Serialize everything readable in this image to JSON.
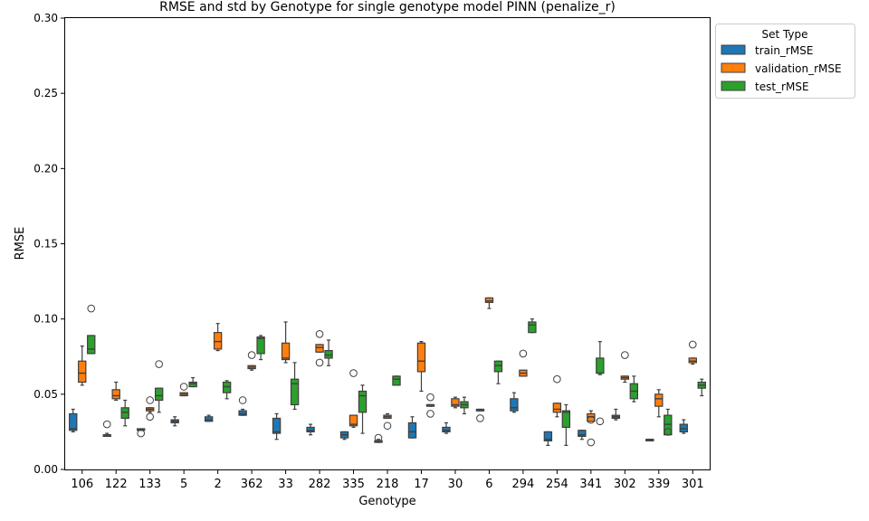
{
  "chart_data": {
    "type": "boxplot",
    "title": "RMSE and std by Genotype for single genotype model PINN (penalize_r)",
    "xlabel": "Genotype",
    "ylabel": "RMSE",
    "ylim": [
      0,
      0.3
    ],
    "yticks": [
      "0.00",
      "0.05",
      "0.10",
      "0.15",
      "0.20",
      "0.25",
      "0.30"
    ],
    "ytick_values": [
      0,
      0.05,
      0.1,
      0.15,
      0.2,
      0.25,
      0.3
    ],
    "grid": false,
    "legend": {
      "title": "Set Type",
      "placement": "top-right outside"
    },
    "categories": [
      "106",
      "122",
      "133",
      "5",
      "2",
      "362",
      "33",
      "282",
      "335",
      "218",
      "17",
      "30",
      "6",
      "294",
      "254",
      "341",
      "302",
      "339",
      "301"
    ],
    "series": [
      {
        "name": "train_rMSE",
        "color": "#1f77b4",
        "boxes": [
          {
            "whislo": 0.025,
            "q1": 0.026,
            "med": 0.027,
            "q3": 0.037,
            "whishi": 0.04,
            "fliers": []
          },
          {
            "whislo": 0.022,
            "q1": 0.022,
            "med": 0.023,
            "q3": 0.023,
            "whishi": 0.024,
            "fliers": [
              0.03
            ]
          },
          {
            "whislo": 0.026,
            "q1": 0.026,
            "med": 0.027,
            "q3": 0.027,
            "whishi": 0.027,
            "fliers": [
              0.024
            ]
          },
          {
            "whislo": 0.029,
            "q1": 0.031,
            "med": 0.032,
            "q3": 0.033,
            "whishi": 0.035,
            "fliers": []
          },
          {
            "whislo": 0.032,
            "q1": 0.032,
            "med": 0.033,
            "q3": 0.035,
            "whishi": 0.036,
            "fliers": []
          },
          {
            "whislo": 0.036,
            "q1": 0.036,
            "med": 0.037,
            "q3": 0.039,
            "whishi": 0.04,
            "fliers": [
              0.046
            ]
          },
          {
            "whislo": 0.02,
            "q1": 0.024,
            "med": 0.025,
            "q3": 0.034,
            "whishi": 0.037,
            "fliers": []
          },
          {
            "whislo": 0.023,
            "q1": 0.025,
            "med": 0.026,
            "q3": 0.028,
            "whishi": 0.03,
            "fliers": []
          },
          {
            "whislo": 0.02,
            "q1": 0.021,
            "med": 0.023,
            "q3": 0.025,
            "whishi": 0.025,
            "fliers": []
          },
          {
            "whislo": 0.018,
            "q1": 0.018,
            "med": 0.019,
            "q3": 0.019,
            "whishi": 0.02,
            "fliers": [
              0.021
            ]
          },
          {
            "whislo": 0.021,
            "q1": 0.021,
            "med": 0.025,
            "q3": 0.031,
            "whishi": 0.035,
            "fliers": []
          },
          {
            "whislo": 0.024,
            "q1": 0.025,
            "med": 0.026,
            "q3": 0.028,
            "whishi": 0.031,
            "fliers": []
          },
          {
            "whislo": 0.039,
            "q1": 0.039,
            "med": 0.039,
            "q3": 0.04,
            "whishi": 0.04,
            "fliers": [
              0.034
            ]
          },
          {
            "whislo": 0.038,
            "q1": 0.039,
            "med": 0.041,
            "q3": 0.047,
            "whishi": 0.051,
            "fliers": []
          },
          {
            "whislo": 0.016,
            "q1": 0.019,
            "med": 0.02,
            "q3": 0.025,
            "whishi": 0.025,
            "fliers": []
          },
          {
            "whislo": 0.02,
            "q1": 0.022,
            "med": 0.023,
            "q3": 0.026,
            "whishi": 0.026,
            "fliers": []
          },
          {
            "whislo": 0.033,
            "q1": 0.034,
            "med": 0.035,
            "q3": 0.036,
            "whishi": 0.04,
            "fliers": []
          },
          {
            "whislo": 0.019,
            "q1": 0.019,
            "med": 0.02,
            "q3": 0.02,
            "whishi": 0.02,
            "fliers": []
          },
          {
            "whislo": 0.024,
            "q1": 0.025,
            "med": 0.027,
            "q3": 0.03,
            "whishi": 0.033,
            "fliers": []
          }
        ]
      },
      {
        "name": "validation_rMSE",
        "color": "#ff7f0e",
        "boxes": [
          {
            "whislo": 0.056,
            "q1": 0.058,
            "med": 0.064,
            "q3": 0.072,
            "whishi": 0.082,
            "fliers": []
          },
          {
            "whislo": 0.046,
            "q1": 0.047,
            "med": 0.049,
            "q3": 0.053,
            "whishi": 0.058,
            "fliers": []
          },
          {
            "whislo": 0.038,
            "q1": 0.039,
            "med": 0.04,
            "q3": 0.041,
            "whishi": 0.041,
            "fliers": [
              0.046,
              0.035
            ]
          },
          {
            "whislo": 0.049,
            "q1": 0.049,
            "med": 0.05,
            "q3": 0.051,
            "whishi": 0.051,
            "fliers": [
              0.055
            ]
          },
          {
            "whislo": 0.079,
            "q1": 0.08,
            "med": 0.085,
            "q3": 0.091,
            "whishi": 0.097,
            "fliers": []
          },
          {
            "whislo": 0.066,
            "q1": 0.067,
            "med": 0.068,
            "q3": 0.069,
            "whishi": 0.069,
            "fliers": [
              0.076
            ]
          },
          {
            "whislo": 0.071,
            "q1": 0.073,
            "med": 0.074,
            "q3": 0.084,
            "whishi": 0.098,
            "fliers": []
          },
          {
            "whislo": 0.078,
            "q1": 0.078,
            "med": 0.081,
            "q3": 0.083,
            "whishi": 0.083,
            "fliers": [
              0.09,
              0.071
            ]
          },
          {
            "whislo": 0.028,
            "q1": 0.029,
            "med": 0.03,
            "q3": 0.036,
            "whishi": 0.036,
            "fliers": [
              0.064
            ]
          },
          {
            "whislo": 0.034,
            "q1": 0.034,
            "med": 0.035,
            "q3": 0.036,
            "whishi": 0.037,
            "fliers": [
              0.029
            ]
          },
          {
            "whislo": 0.052,
            "q1": 0.065,
            "med": 0.072,
            "q3": 0.084,
            "whishi": 0.085,
            "fliers": []
          },
          {
            "whislo": 0.041,
            "q1": 0.042,
            "med": 0.043,
            "q3": 0.047,
            "whishi": 0.048,
            "fliers": []
          },
          {
            "whislo": 0.107,
            "q1": 0.111,
            "med": 0.112,
            "q3": 0.114,
            "whishi": 0.114,
            "fliers": []
          },
          {
            "whislo": 0.062,
            "q1": 0.062,
            "med": 0.064,
            "q3": 0.066,
            "whishi": 0.066,
            "fliers": [
              0.077
            ]
          },
          {
            "whislo": 0.035,
            "q1": 0.038,
            "med": 0.04,
            "q3": 0.044,
            "whishi": 0.044,
            "fliers": [
              0.06
            ]
          },
          {
            "whislo": 0.032,
            "q1": 0.032,
            "med": 0.035,
            "q3": 0.037,
            "whishi": 0.039,
            "fliers": [
              0.033,
              0.018
            ]
          },
          {
            "whislo": 0.058,
            "q1": 0.06,
            "med": 0.061,
            "q3": 0.062,
            "whishi": 0.062,
            "fliers": [
              0.076
            ]
          },
          {
            "whislo": 0.035,
            "q1": 0.042,
            "med": 0.047,
            "q3": 0.05,
            "whishi": 0.053,
            "fliers": []
          },
          {
            "whislo": 0.07,
            "q1": 0.071,
            "med": 0.072,
            "q3": 0.074,
            "whishi": 0.074,
            "fliers": [
              0.083
            ]
          }
        ]
      },
      {
        "name": "test_rMSE",
        "color": "#2ca02c",
        "boxes": [
          {
            "whislo": 0.077,
            "q1": 0.077,
            "med": 0.08,
            "q3": 0.089,
            "whishi": 0.089,
            "fliers": [
              0.107
            ]
          },
          {
            "whislo": 0.029,
            "q1": 0.034,
            "med": 0.038,
            "q3": 0.041,
            "whishi": 0.046,
            "fliers": []
          },
          {
            "whislo": 0.038,
            "q1": 0.046,
            "med": 0.049,
            "q3": 0.054,
            "whishi": 0.054,
            "fliers": [
              0.07
            ]
          },
          {
            "whislo": 0.055,
            "q1": 0.055,
            "med": 0.057,
            "q3": 0.058,
            "whishi": 0.061,
            "fliers": []
          },
          {
            "whislo": 0.047,
            "q1": 0.051,
            "med": 0.055,
            "q3": 0.058,
            "whishi": 0.059,
            "fliers": []
          },
          {
            "whislo": 0.073,
            "q1": 0.077,
            "med": 0.087,
            "q3": 0.088,
            "whishi": 0.089,
            "fliers": []
          },
          {
            "whislo": 0.04,
            "q1": 0.043,
            "med": 0.057,
            "q3": 0.06,
            "whishi": 0.071,
            "fliers": []
          },
          {
            "whislo": 0.069,
            "q1": 0.074,
            "med": 0.076,
            "q3": 0.079,
            "whishi": 0.086,
            "fliers": []
          },
          {
            "whislo": 0.024,
            "q1": 0.038,
            "med": 0.049,
            "q3": 0.052,
            "whishi": 0.056,
            "fliers": []
          },
          {
            "whislo": 0.056,
            "q1": 0.056,
            "med": 0.06,
            "q3": 0.062,
            "whishi": 0.062,
            "fliers": []
          },
          {
            "whislo": 0.042,
            "q1": 0.042,
            "med": 0.043,
            "q3": 0.043,
            "whishi": 0.043,
            "fliers": [
              0.048,
              0.037
            ]
          },
          {
            "whislo": 0.037,
            "q1": 0.041,
            "med": 0.043,
            "q3": 0.045,
            "whishi": 0.048,
            "fliers": []
          },
          {
            "whislo": 0.057,
            "q1": 0.065,
            "med": 0.069,
            "q3": 0.072,
            "whishi": 0.072,
            "fliers": []
          },
          {
            "whislo": 0.091,
            "q1": 0.091,
            "med": 0.096,
            "q3": 0.098,
            "whishi": 0.1,
            "fliers": []
          },
          {
            "whislo": 0.016,
            "q1": 0.028,
            "med": 0.038,
            "q3": 0.039,
            "whishi": 0.043,
            "fliers": []
          },
          {
            "whislo": 0.063,
            "q1": 0.064,
            "med": 0.064,
            "q3": 0.074,
            "whishi": 0.085,
            "fliers": [
              0.032
            ]
          },
          {
            "whislo": 0.045,
            "q1": 0.047,
            "med": 0.052,
            "q3": 0.057,
            "whishi": 0.062,
            "fliers": []
          },
          {
            "whislo": 0.023,
            "q1": 0.023,
            "med": 0.03,
            "q3": 0.036,
            "whishi": 0.04,
            "fliers": [
              0.025
            ]
          },
          {
            "whislo": 0.049,
            "q1": 0.054,
            "med": 0.056,
            "q3": 0.058,
            "whishi": 0.06,
            "fliers": []
          }
        ]
      }
    ]
  }
}
